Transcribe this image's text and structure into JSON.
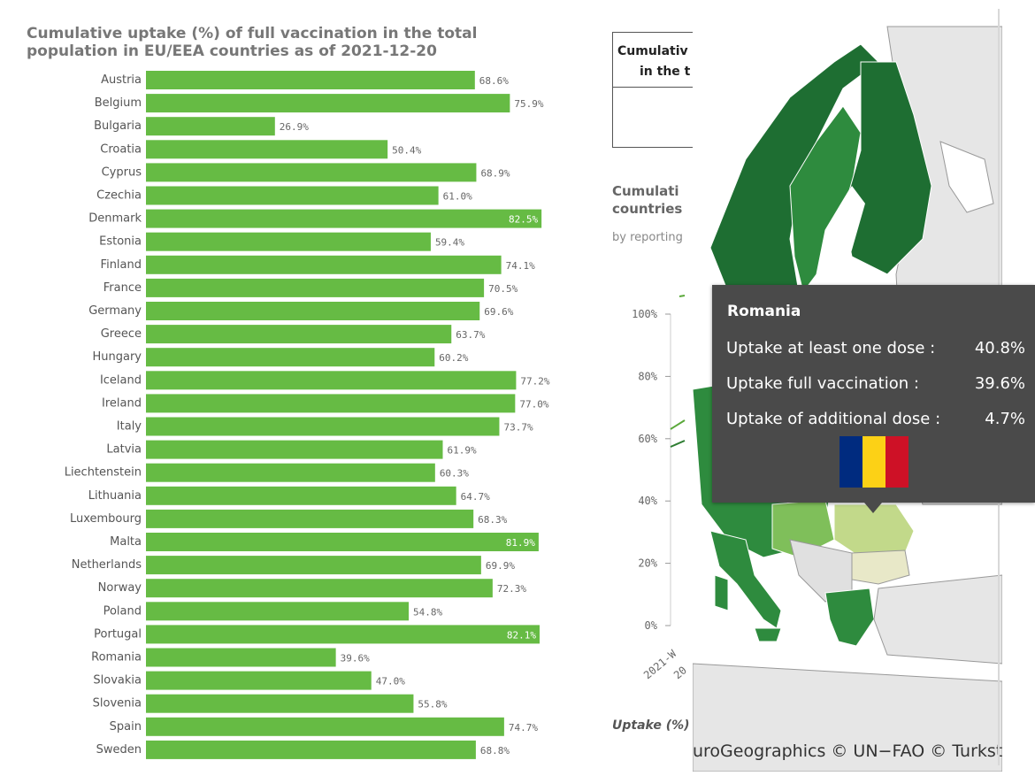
{
  "left_chart_title": "Cumulative uptake (%) of full vaccination in the total population in EU/EEA countries as of 2021-12-20",
  "chart_data": [
    {
      "type": "bar",
      "orientation": "horizontal",
      "title": "Cumulative uptake (%) of full vaccination in the total population in EU/EEA countries as of 2021-12-20",
      "categories": [
        "Austria",
        "Belgium",
        "Bulgaria",
        "Croatia",
        "Cyprus",
        "Czechia",
        "Denmark",
        "Estonia",
        "Finland",
        "France",
        "Germany",
        "Greece",
        "Hungary",
        "Iceland",
        "Ireland",
        "Italy",
        "Latvia",
        "Liechtenstein",
        "Lithuania",
        "Luxembourg",
        "Malta",
        "Netherlands",
        "Norway",
        "Poland",
        "Portugal",
        "Romania",
        "Slovakia",
        "Slovenia",
        "Spain",
        "Sweden"
      ],
      "values": [
        68.6,
        75.9,
        26.9,
        50.4,
        68.9,
        61.0,
        82.5,
        59.4,
        74.1,
        70.5,
        69.6,
        63.7,
        60.2,
        77.2,
        77.0,
        73.7,
        61.9,
        60.3,
        64.7,
        68.3,
        81.9,
        69.9,
        72.3,
        54.8,
        82.1,
        39.6,
        47.0,
        55.8,
        74.7,
        68.8
      ],
      "value_labels": [
        "68.6%",
        "75.9%",
        "26.9%",
        "50.4%",
        "68.9%",
        "61.0%",
        "82.5%",
        "59.4%",
        "74.1%",
        "70.5%",
        "69.6%",
        "63.7%",
        "60.2%",
        "77.2%",
        "77.0%",
        "73.7%",
        "61.9%",
        "60.3%",
        "64.7%",
        "68.3%",
        "81.9%",
        "69.9%",
        "72.3%",
        "54.8%",
        "82.1%",
        "39.6%",
        "47.0%",
        "55.8%",
        "74.7%",
        "68.8%"
      ],
      "bar_color": "#66bb44",
      "xlim": [
        0,
        100
      ]
    },
    {
      "type": "line",
      "title": "Cumulati countries",
      "y_ticks": [
        "100%",
        "80%",
        "60%",
        "40%",
        "20%",
        "0%"
      ],
      "ylim": [
        0,
        100
      ],
      "x_tick_partial": "2021-W",
      "grid": false
    }
  ],
  "right": {
    "table_header_line1": "Cumulativ",
    "table_header_line2": "in the t",
    "line_title_line1": "Cumulati",
    "line_title_line2": "countries",
    "line_subtitle": "by reporting",
    "x_tick_1": "2021-W",
    "x_tick_2": "20",
    "uptake_label": "Uptake (%)",
    "map_attribution": "uroGeographics © UN−FAO © Turkstat"
  },
  "tooltip": {
    "country": "Romania",
    "rows": [
      {
        "label": "Uptake at least one dose :",
        "value": "40.8%"
      },
      {
        "label": "Uptake full vaccination :",
        "value": "39.6%"
      },
      {
        "label": "Uptake of additional dose :",
        "value": "4.7%"
      }
    ],
    "flag_colors": [
      "#002b7f",
      "#fcd116",
      "#ce1126"
    ]
  },
  "colors": {
    "map_dark_green": "#1e6e32",
    "map_mid_green": "#2e8b3e",
    "map_light_green": "#7fbf5a",
    "map_pale_green": "#c2d98a",
    "map_grey": "#e6e6e6"
  }
}
